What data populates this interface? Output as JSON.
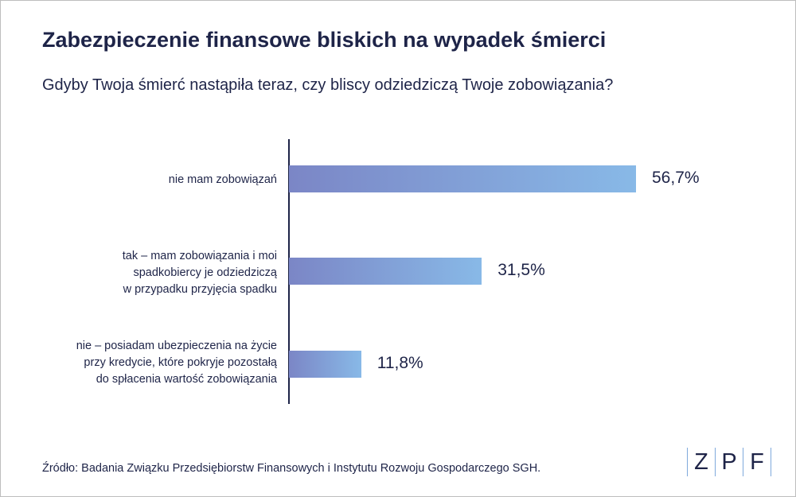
{
  "title": "Zabezpieczenie finansowe bliskich na wypadek śmierci",
  "subtitle": "Gdyby Twoja śmierć nastąpiła teraz, czy bliscy odziedziczą Twoje zobowiązania?",
  "source": "Źródło: Badania Związku Przedsiębiorstw Finansowych i Instytutu Rozwoju Gospodarczego SGH.",
  "logo": {
    "letters": [
      "Z",
      "P",
      "F"
    ]
  },
  "colors": {
    "text": "#1e2448",
    "bar_start": "#7b86c6",
    "bar_end": "#88b9e7",
    "logo_accent": "#7fa9dc"
  },
  "chart_data": {
    "type": "bar",
    "orientation": "horizontal",
    "title": "Zabezpieczenie finansowe bliskich na wypadek śmierci",
    "subtitle": "Gdyby Twoja śmierć nastąpiła teraz, czy bliscy odziedziczą Twoje zobowiązania?",
    "categories": [
      "nie mam zobowiązań",
      "tak – mam zobowiązania i moi\nspadkobiercy je odziedziczą\nw przypadku przyjęcia spadku",
      "nie – posiadam ubezpieczenia na życie\nprzy kredycie, które pokryje pozostałą\ndo spłacenia wartość zobowiązania"
    ],
    "values": [
      56.7,
      31.5,
      11.8
    ],
    "value_labels": [
      "56,7%",
      "31,5%",
      "11,8%"
    ],
    "unit": "%",
    "xlim": [
      0,
      56.7
    ],
    "grid": false,
    "legend": "none"
  }
}
